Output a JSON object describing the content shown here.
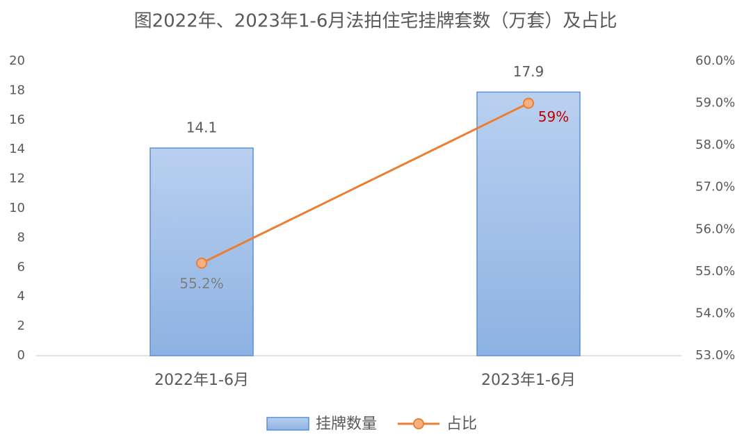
{
  "chart_data": {
    "type": "combo",
    "title": "图2022年、2023年1-6月法拍住宅挂牌套数（万套）及占比",
    "categories": [
      "2022年1-6月",
      "2023年1-6月"
    ],
    "series": [
      {
        "name": "挂牌数量",
        "type": "bar",
        "color": "#9dbde8",
        "values": [
          14.1,
          17.9
        ]
      },
      {
        "name": "占比",
        "type": "line",
        "axis": "y2",
        "color": "#ed7d31",
        "values": [
          55.2,
          59
        ],
        "value_labels": [
          "55.2%",
          "59%"
        ],
        "value_label_colors": [
          "#7f7f7f",
          "#c00000"
        ]
      }
    ],
    "ylim": [
      0,
      20
    ],
    "yticks": [
      0,
      2,
      4,
      6,
      8,
      10,
      12,
      14,
      16,
      18,
      20
    ],
    "y2lim": [
      53,
      60
    ],
    "y2ticks": [
      {
        "value": 53,
        "label": "53.0%"
      },
      {
        "value": 54,
        "label": "54.0%"
      },
      {
        "value": 55,
        "label": "55.0%"
      },
      {
        "value": 56,
        "label": "56.0%"
      },
      {
        "value": 57,
        "label": "57.0%"
      },
      {
        "value": 58,
        "label": "58.0%"
      },
      {
        "value": 59,
        "label": "59.0%"
      },
      {
        "value": 60,
        "label": "60.0%"
      }
    ],
    "grid": false,
    "legend": "bottom"
  }
}
